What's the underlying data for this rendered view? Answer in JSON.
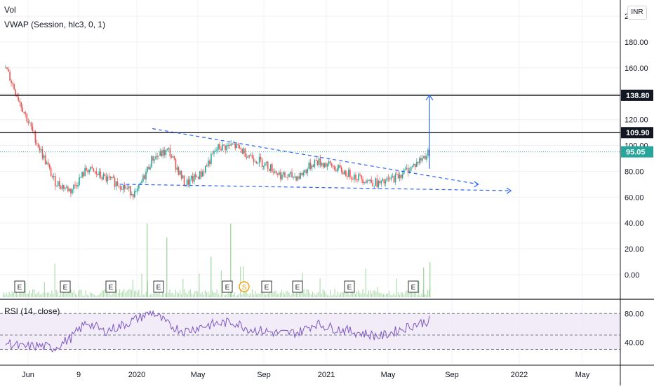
{
  "legend": {
    "vol": "Vol",
    "vwap": "VWAP (Session, hlc3, 0, 1)",
    "rsi": "RSI (14, close)"
  },
  "currency_badge": "INR",
  "price_axis": {
    "ticks": [
      "200.00",
      "180.00",
      "160.00",
      "140.00",
      "120.00",
      "100.00",
      "80.00",
      "60.00",
      "40.00",
      "20.00",
      "0.00"
    ],
    "top_partial": "2",
    "price_min": 0,
    "price_max": 200
  },
  "rsi_axis": {
    "ticks": [
      "80.00",
      "40.00"
    ],
    "bands": [
      70,
      50,
      30
    ],
    "range": [
      10,
      90
    ]
  },
  "time_axis": [
    "Jun",
    "9",
    "2020",
    "May",
    "Sep",
    "2021",
    "May",
    "Sep",
    "2022",
    "May"
  ],
  "price_labels": [
    {
      "text": "138.80",
      "value": 138.8,
      "style": "dark"
    },
    {
      "text": "109.90",
      "value": 109.9,
      "style": "dark"
    },
    {
      "text": "95.05",
      "value": 95.05,
      "style": "green"
    }
  ],
  "event_markers": [
    "E",
    "E",
    "E",
    "E",
    "E",
    "S",
    "E",
    "E",
    "E",
    "E"
  ],
  "colors": {
    "up": "#26a69a",
    "down": "#ef5350",
    "rsi_line": "#7e57c2",
    "rsi_fill": "#ede7f6",
    "trendline": "#2962ff",
    "level": "#000000",
    "arrow": "#2962ff",
    "dividend": "#f59d0e",
    "volume": "#8fcf8f"
  },
  "chart_data": {
    "type": "candlestick",
    "title": "",
    "xlabel": "",
    "ylabel": "",
    "ylim": [
      0,
      200
    ],
    "x": [
      "2019-05",
      "2019-06",
      "2019-07",
      "2019-08",
      "2019-09",
      "2019-10",
      "2019-11",
      "2019-12",
      "2020-01",
      "2020-02",
      "2020-03",
      "2020-04",
      "2020-05",
      "2020-06",
      "2020-07",
      "2020-08",
      "2020-09",
      "2020-10",
      "2020-11",
      "2020-12",
      "2021-01",
      "2021-02",
      "2021-03",
      "2021-04",
      "2021-05",
      "2021-06",
      "2021-07"
    ],
    "close": [
      160,
      130,
      100,
      72,
      65,
      82,
      75,
      70,
      62,
      90,
      96,
      70,
      78,
      98,
      100,
      92,
      85,
      76,
      76,
      88,
      84,
      78,
      74,
      70,
      76,
      84,
      95
    ],
    "horizontal_levels": [
      138.8,
      109.9
    ],
    "current_price": 95.05,
    "trendlines": [
      {
        "style": "dashed",
        "from": [
          "2020-02",
          113
        ],
        "to": [
          "2021-10",
          70
        ]
      },
      {
        "style": "dashed",
        "from": [
          "2019-12",
          70
        ],
        "to": [
          "2021-12",
          65
        ]
      }
    ],
    "target_arrow": {
      "from": [
        "2021-07",
        82
      ],
      "to": [
        "2021-07",
        138.8
      ]
    },
    "rsi": {
      "name": "RSI (14, close)",
      "values": [
        40,
        33,
        35,
        32,
        46,
        68,
        55,
        62,
        72,
        82,
        64,
        55,
        62,
        66,
        68,
        58,
        55,
        52,
        54,
        66,
        60,
        56,
        52,
        48,
        56,
        64,
        70
      ]
    }
  }
}
